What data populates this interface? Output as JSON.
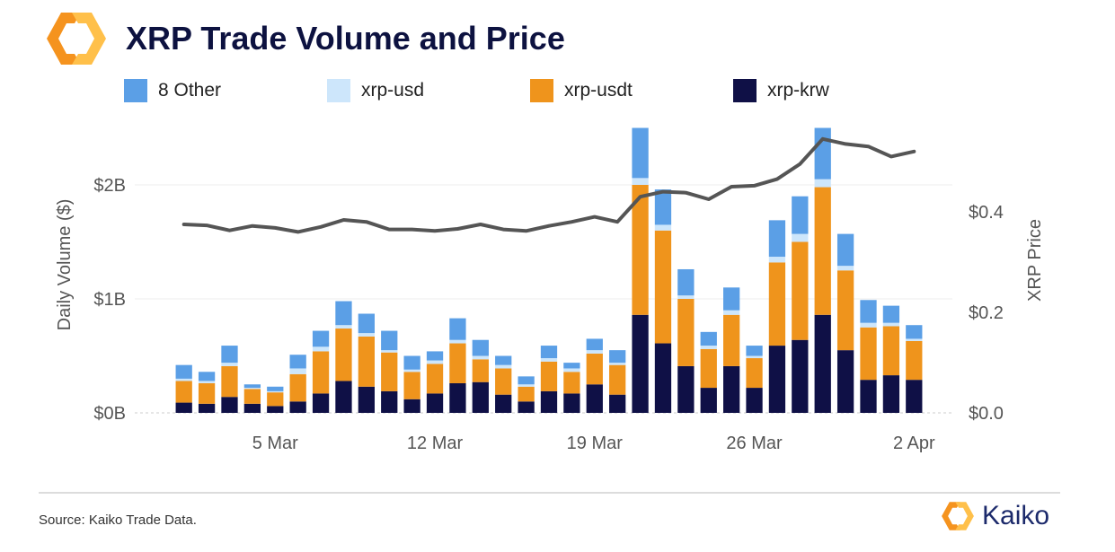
{
  "header": {
    "title": "XRP Trade Volume and Price"
  },
  "footer": {
    "source": "Source: Kaiko Trade Data.",
    "brand": "Kaiko"
  },
  "colors": {
    "other": "#5b9fe6",
    "xrp_usd": "#cde6fb",
    "xrp_usdt": "#ef941c",
    "xrp_krw": "#0f1046",
    "price_line": "#555555",
    "brand_orange": "#f5931e"
  },
  "chart_data": {
    "type": "bar",
    "stacked": true,
    "title": "XRP Trade Volume and Price",
    "ylabel": "Daily Volume ($)",
    "y2label": "XRP Price",
    "ylim": [
      0,
      2.5
    ],
    "y2lim": [
      0,
      0.55
    ],
    "yticks": [
      0,
      1,
      2
    ],
    "ytick_labels": [
      "$0B",
      "$1B",
      "$2B"
    ],
    "y2ticks": [
      0,
      0.2,
      0.4
    ],
    "y2tick_labels": [
      "$0.0",
      "$0.2",
      "$0.4"
    ],
    "xtick_labels": [
      {
        "label": "5 Mar",
        "index": 4
      },
      {
        "label": "12 Mar",
        "index": 11
      },
      {
        "label": "19 Mar",
        "index": 18
      },
      {
        "label": "26 Mar",
        "index": 25
      },
      {
        "label": "2 Apr",
        "index": 32
      }
    ],
    "legend": [
      "8 Other",
      "xrp-usd",
      "xrp-usdt",
      "xrp-krw"
    ],
    "dates": [
      "Mar 1",
      "Mar 2",
      "Mar 3",
      "Mar 4",
      "Mar 5",
      "Mar 6",
      "Mar 7",
      "Mar 8",
      "Mar 9",
      "Mar 10",
      "Mar 11",
      "Mar 12",
      "Mar 13",
      "Mar 14",
      "Mar 15",
      "Mar 16",
      "Mar 17",
      "Mar 18",
      "Mar 19",
      "Mar 20",
      "Mar 21",
      "Mar 22",
      "Mar 23",
      "Mar 24",
      "Mar 25",
      "Mar 26",
      "Mar 27",
      "Mar 28",
      "Mar 29",
      "Mar 30",
      "Mar 31",
      "Apr 1",
      "Apr 2"
    ],
    "series": [
      {
        "name": "xrp-krw",
        "values": [
          0.09,
          0.08,
          0.14,
          0.08,
          0.06,
          0.1,
          0.17,
          0.28,
          0.23,
          0.19,
          0.12,
          0.17,
          0.26,
          0.27,
          0.16,
          0.1,
          0.19,
          0.17,
          0.25,
          0.16,
          0.86,
          0.61,
          0.41,
          0.22,
          0.41,
          0.22,
          0.59,
          0.64,
          0.86,
          0.55,
          0.29,
          0.33,
          0.29
        ]
      },
      {
        "name": "xrp-usdt",
        "values": [
          0.19,
          0.18,
          0.27,
          0.13,
          0.12,
          0.24,
          0.37,
          0.46,
          0.44,
          0.34,
          0.24,
          0.26,
          0.35,
          0.2,
          0.23,
          0.13,
          0.26,
          0.19,
          0.27,
          0.26,
          1.14,
          0.99,
          0.59,
          0.34,
          0.45,
          0.26,
          0.73,
          0.86,
          1.12,
          0.7,
          0.46,
          0.43,
          0.34
        ]
      },
      {
        "name": "xrp-usd",
        "values": [
          0.02,
          0.02,
          0.03,
          0.01,
          0.01,
          0.05,
          0.04,
          0.03,
          0.03,
          0.02,
          0.02,
          0.03,
          0.03,
          0.03,
          0.03,
          0.02,
          0.03,
          0.03,
          0.03,
          0.02,
          0.06,
          0.05,
          0.03,
          0.03,
          0.04,
          0.02,
          0.05,
          0.07,
          0.07,
          0.04,
          0.04,
          0.03,
          0.02
        ]
      },
      {
        "name": "8 Other",
        "values": [
          0.12,
          0.08,
          0.15,
          0.03,
          0.04,
          0.12,
          0.14,
          0.21,
          0.17,
          0.17,
          0.12,
          0.08,
          0.19,
          0.14,
          0.08,
          0.07,
          0.11,
          0.05,
          0.1,
          0.11,
          0.44,
          0.31,
          0.23,
          0.12,
          0.2,
          0.09,
          0.32,
          0.33,
          0.45,
          0.28,
          0.2,
          0.15,
          0.12
        ]
      }
    ],
    "price": [
      0.375,
      0.373,
      0.363,
      0.372,
      0.368,
      0.36,
      0.37,
      0.384,
      0.38,
      0.365,
      0.365,
      0.362,
      0.366,
      0.375,
      0.365,
      0.362,
      0.372,
      0.38,
      0.39,
      0.38,
      0.43,
      0.44,
      0.438,
      0.425,
      0.45,
      0.452,
      0.465,
      0.495,
      0.545,
      0.535,
      0.53,
      0.51,
      0.52
    ]
  }
}
